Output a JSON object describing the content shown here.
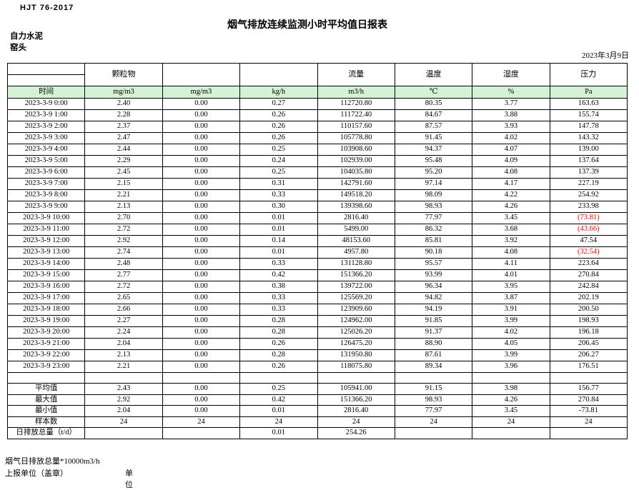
{
  "header": {
    "standard_no": "HJT 76-2017",
    "title": "烟气排放连续监测小时平均值日报表",
    "company": "自力水泥",
    "location": "窑头",
    "date": "2023年3月9日"
  },
  "table": {
    "group_headers": {
      "particulate": "颗粒物",
      "flow": "流量",
      "temperature": "温度",
      "humidity": "湿度",
      "pressure": "压力"
    },
    "unit_row": {
      "time": "时间",
      "pm_concentration": "mg/m3",
      "pm_concentration2": "mg/m3",
      "pm_rate": "kg/h",
      "flow": "m3/h",
      "temperature": "℃",
      "humidity": "%",
      "pressure": "Pa"
    },
    "rows": [
      {
        "time": "2023-3-9 0:00",
        "cells": [
          "2.40",
          "0.00",
          "0.27",
          "112720.80",
          "80.35",
          "3.77",
          "163.63"
        ]
      },
      {
        "time": "2023-3-9 1:00",
        "cells": [
          "2.28",
          "0.00",
          "0.26",
          "111722.40",
          "84.67",
          "3.88",
          "155.74"
        ]
      },
      {
        "time": "2023-3-9 2:00",
        "cells": [
          "2.37",
          "0.00",
          "0.26",
          "110157.60",
          "87.57",
          "3.93",
          "147.78"
        ]
      },
      {
        "time": "2023-3-9 3:00",
        "cells": [
          "2.47",
          "0.00",
          "0.26",
          "105778.80",
          "91.45",
          "4.02",
          "143.32"
        ]
      },
      {
        "time": "2023-3-9 4:00",
        "cells": [
          "2.44",
          "0.00",
          "0.25",
          "103908.60",
          "94.37",
          "4.07",
          "139.00"
        ]
      },
      {
        "time": "2023-3-9 5:00",
        "cells": [
          "2.29",
          "0.00",
          "0.24",
          "102939.00",
          "95.48",
          "4.09",
          "137.64"
        ]
      },
      {
        "time": "2023-3-9 6:00",
        "cells": [
          "2.45",
          "0.00",
          "0.25",
          "104035.80",
          "95.20",
          "4.08",
          "137.39"
        ]
      },
      {
        "time": "2023-3-9 7:00",
        "cells": [
          "2.15",
          "0.00",
          "0.31",
          "142791.60",
          "97.14",
          "4.17",
          "227.19"
        ]
      },
      {
        "time": "2023-3-9 8:00",
        "cells": [
          "2.21",
          "0.00",
          "0.33",
          "149518.20",
          "98.09",
          "4.22",
          "254.92"
        ]
      },
      {
        "time": "2023-3-9 9:00",
        "cells": [
          "2.13",
          "0.00",
          "0.30",
          "139398.60",
          "98.93",
          "4.26",
          "233.98"
        ]
      },
      {
        "time": "2023-3-9 10:00",
        "cells": [
          "2.70",
          "0.00",
          "0.01",
          "2816.40",
          "77.97",
          "3.45",
          "(73.81)"
        ]
      },
      {
        "time": "2023-3-9 11:00",
        "cells": [
          "2.72",
          "0.00",
          "0.01",
          "5499.00",
          "86.32",
          "3.68",
          "(43.66)"
        ]
      },
      {
        "time": "2023-3-9 12:00",
        "cells": [
          "2.92",
          "0.00",
          "0.14",
          "48153.60",
          "85.81",
          "3.92",
          "47.54"
        ]
      },
      {
        "time": "2023-3-9 13:00",
        "cells": [
          "2.74",
          "0.00",
          "0.01",
          "4957.80",
          "90.18",
          "4.08",
          "(32.54)"
        ]
      },
      {
        "time": "2023-3-9 14:00",
        "cells": [
          "2.48",
          "0.00",
          "0.33",
          "131128.80",
          "95.57",
          "4.11",
          "223.64"
        ]
      },
      {
        "time": "2023-3-9 15:00",
        "cells": [
          "2.77",
          "0.00",
          "0.42",
          "151366.20",
          "93.99",
          "4.01",
          "270.84"
        ]
      },
      {
        "time": "2023-3-9 16:00",
        "cells": [
          "2.72",
          "0.00",
          "0.38",
          "139722.00",
          "96.34",
          "3.95",
          "242.84"
        ]
      },
      {
        "time": "2023-3-9 17:00",
        "cells": [
          "2.65",
          "0.00",
          "0.33",
          "125569.20",
          "94.82",
          "3.87",
          "202.19"
        ]
      },
      {
        "time": "2023-3-9 18:00",
        "cells": [
          "2.66",
          "0.00",
          "0.33",
          "123909.60",
          "94.19",
          "3.91",
          "200.50"
        ]
      },
      {
        "time": "2023-3-9 19:00",
        "cells": [
          "2.27",
          "0.00",
          "0.28",
          "124962.00",
          "91.85",
          "3.99",
          "198.93"
        ]
      },
      {
        "time": "2023-3-9 20:00",
        "cells": [
          "2.24",
          "0.00",
          "0.28",
          "125026.20",
          "91.37",
          "4.02",
          "196.18"
        ]
      },
      {
        "time": "2023-3-9 21:00",
        "cells": [
          "2.04",
          "0.00",
          "0.26",
          "126475.20",
          "88.90",
          "4.05",
          "206.45"
        ]
      },
      {
        "time": "2023-3-9 22:00",
        "cells": [
          "2.13",
          "0.00",
          "0.28",
          "131950.80",
          "87.61",
          "3.99",
          "206.27"
        ]
      },
      {
        "time": "2023-3-9 23:00",
        "cells": [
          "2.21",
          "0.00",
          "0.26",
          "118075.80",
          "89.34",
          "3.96",
          "176.51"
        ]
      }
    ],
    "summary_rows": [
      {
        "label": "平均值",
        "cells": [
          "2.43",
          "0.00",
          "0.25",
          "105941.00",
          "91.15",
          "3.98",
          "156.77"
        ]
      },
      {
        "label": "最大值",
        "cells": [
          "2.92",
          "0.00",
          "0.42",
          "151366.20",
          "98.93",
          "4.26",
          "270.84"
        ]
      },
      {
        "label": "最小值",
        "cells": [
          "2.04",
          "0.00",
          "0.01",
          "2816.40",
          "77.97",
          "3.45",
          "-73.81"
        ]
      },
      {
        "label": "样本数",
        "cells": [
          "24",
          "24",
          "24",
          "24",
          "24",
          "24",
          "24"
        ]
      },
      {
        "label": "日排放总量（t/d）",
        "cells": [
          "",
          "",
          "0.01",
          "254.26",
          "",
          "",
          ""
        ]
      }
    ]
  },
  "footer": {
    "note": "烟气日排放总量*10000m3/h",
    "report_unit_label": "上报单位（盖章）",
    "unit_label": "单位"
  },
  "colors": {
    "unit_row_fill": "#d6f2d6",
    "negative_value": "#ff0000",
    "grid_line": "#000000"
  }
}
